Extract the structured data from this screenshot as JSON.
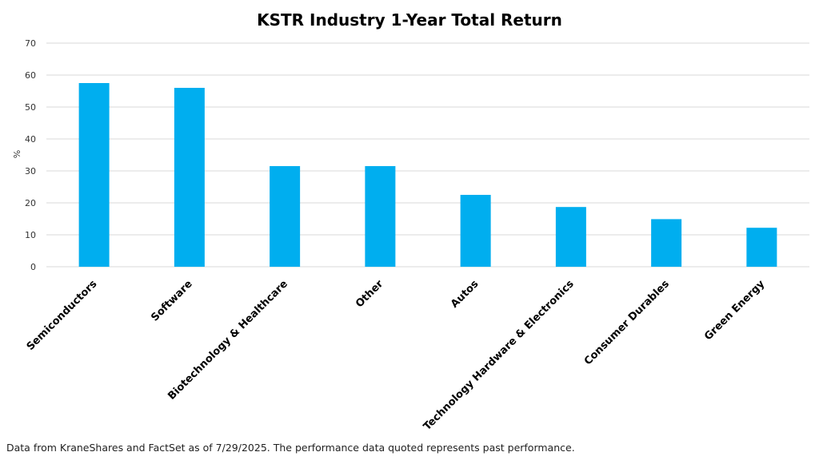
{
  "chart_data": {
    "type": "bar",
    "title": "KSTR Industry 1-Year Total Return",
    "xlabel": "",
    "ylabel": "%",
    "ylim": [
      0,
      70
    ],
    "yticks": [
      0,
      10,
      20,
      30,
      40,
      50,
      60,
      70
    ],
    "grid": true,
    "legend": "none",
    "categories": [
      "Semiconductors",
      "Software",
      "Biotechnology & Healthcare",
      "Other",
      "Autos",
      "Technology Hardware & Electronics",
      "Consumer Durables",
      "Green Energy"
    ],
    "values": [
      57.5,
      56,
      31.5,
      31.5,
      22.5,
      18.7,
      14.9,
      12.2
    ],
    "bar_color": "#00AEEF"
  },
  "footnote": "Data from KraneShares and FactSet as of 7/29/2025. The performance data quoted represents past performance."
}
